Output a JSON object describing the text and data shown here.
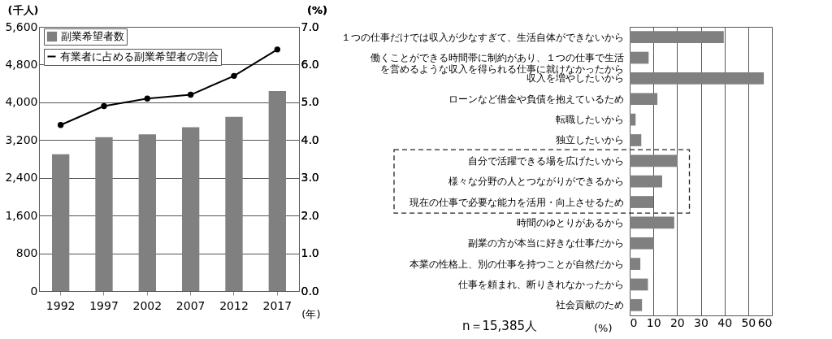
{
  "chart_data": [
    {
      "type": "bar",
      "categories": [
        "1992",
        "1997",
        "2002",
        "2007",
        "2012",
        "2017"
      ],
      "xlabel": "(年)",
      "ylabel": "(千人)",
      "y2label": "(%)",
      "series": [
        {
          "name": "副業希望者数",
          "color": "#808080",
          "values": [
            2900,
            3260,
            3320,
            3470,
            3690,
            4240
          ]
        },
        {
          "name": "有業者に占める副業希望者の割合",
          "type": "line",
          "axis": "y2",
          "marker": "circle",
          "color": "#000000",
          "values": [
            4.4,
            4.9,
            5.1,
            5.2,
            5.7,
            6.4
          ]
        }
      ],
      "ylim": [
        0,
        5600
      ],
      "yticks": [
        {
          "value": 0,
          "label": "0"
        },
        {
          "value": 800,
          "label": "800"
        },
        {
          "value": 1600,
          "label": "1,600"
        },
        {
          "value": 2400,
          "label": "2,400"
        },
        {
          "value": 3200,
          "label": "3,200"
        },
        {
          "value": 4000,
          "label": "4,000"
        },
        {
          "value": 4800,
          "label": "4,800"
        },
        {
          "value": 5600,
          "label": "5,600"
        }
      ],
      "y2lim": [
        0,
        7
      ],
      "y2ticks": [
        {
          "value": 0,
          "label": "0.0"
        },
        {
          "value": 1,
          "label": "1.0"
        },
        {
          "value": 2,
          "label": "2.0"
        },
        {
          "value": 3,
          "label": "3.0"
        },
        {
          "value": 4,
          "label": "4.0"
        },
        {
          "value": 5,
          "label": "5.0"
        },
        {
          "value": 6,
          "label": "6.0"
        },
        {
          "value": 7,
          "label": "7.0"
        }
      ],
      "grid": "y",
      "legend": "top left"
    },
    {
      "type": "bar",
      "orientation": "horizontal",
      "xlabel": "(%)",
      "categories": [
        "１つの仕事だけでは収入が少なすぎて、生活自体ができないから",
        "働くことができる時間帯に制約があり、１つの仕事で生活を営めるような収入を得られる仕事に就けなかったから",
        "収入を増やしたいから",
        "ローンなど借金や負債を抱えているため",
        "転職したいから",
        "独立したいから",
        "自分で活躍できる場を広げたいから",
        "様々な分野の人とつながりができるから",
        "現在の仕事で必要な能力を活用・向上させるため",
        "時間のゆとりがあるから",
        "副業の方が本当に好きな仕事だから",
        "本業の性格上、別の仕事を持つことが自然だから",
        "仕事を頼まれ、断りきれなかったから",
        "社会貢献のため"
      ],
      "series": [
        {
          "color": "#808080",
          "values": [
            39.7,
            8.0,
            56.6,
            11.7,
            2.5,
            4.9,
            20.2,
            13.7,
            10.0,
            18.8,
            10.3,
            4.5,
            7.7,
            5.2
          ]
        }
      ],
      "xlim": [
        0,
        60
      ],
      "xticks": [
        0,
        10,
        20,
        30,
        40,
        50,
        60
      ],
      "grid": "x",
      "annotations": [
        "n＝15,385人"
      ]
    }
  ]
}
